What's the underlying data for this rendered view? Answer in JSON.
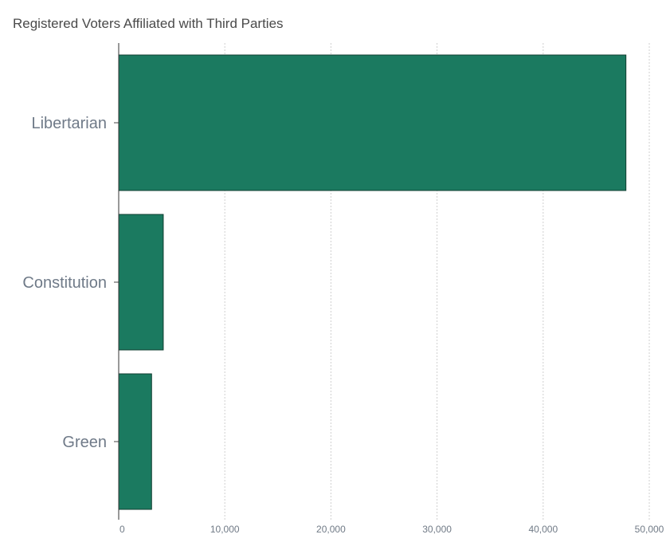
{
  "chart_data": {
    "type": "bar",
    "orientation": "horizontal",
    "title": "Registered Voters Affiliated with Third Parties",
    "categories": [
      "Libertarian",
      "Constitution",
      "Green"
    ],
    "values": [
      47800,
      4200,
      3100
    ],
    "xlim": [
      0,
      50000
    ],
    "x_ticks": [
      0,
      10000,
      20000,
      30000,
      40000,
      50000
    ],
    "x_tick_labels": [
      "0",
      "10,000",
      "20,000",
      "30,000",
      "40,000",
      "50,000"
    ],
    "xlabel": "",
    "ylabel": "",
    "grid": "vertical",
    "legend": "none",
    "bar_color": "#1b7a60"
  }
}
